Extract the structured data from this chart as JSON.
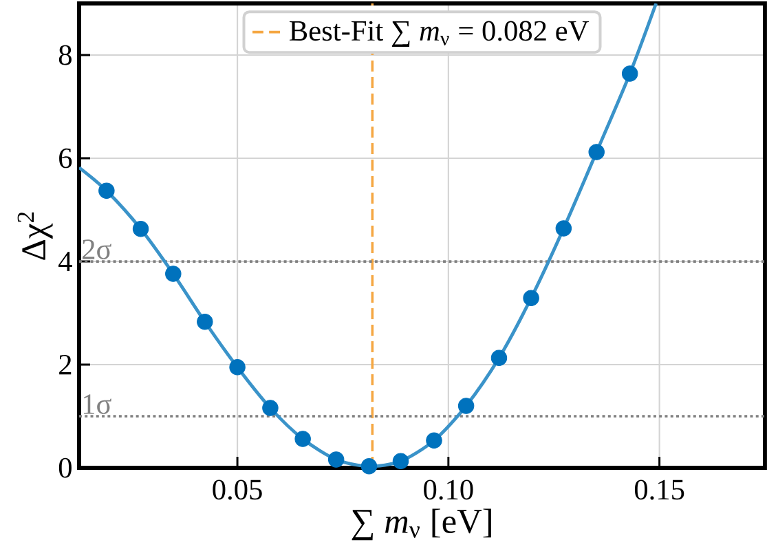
{
  "chart_data": {
    "type": "scatter",
    "xlabel": "∑ *m*$_{ν}$ [eV]",
    "ylabel": "Δχ$^{2}$",
    "xlim": [
      0.0125,
      0.175
    ],
    "ylim": [
      0,
      9
    ],
    "xticks": [
      0.05,
      {
        "value": 0.1,
        "label": "0.10"
      },
      0.15
    ],
    "yticks": [
      0,
      2,
      4,
      6,
      8
    ],
    "grid": true,
    "legend": "top",
    "series": [
      {
        "type": "line",
        "color": "#3a93c9",
        "marker": "none",
        "x": [
          0.0125,
          0.019,
          0.0271,
          0.0348,
          0.0423,
          0.05,
          0.0578,
          0.0655,
          0.0734,
          0.0812,
          0.0887,
          0.0966,
          0.1042,
          0.112,
          0.1196,
          0.1273,
          0.1351,
          0.143,
          0.1492
        ],
        "values": [
          5.82,
          5.37,
          4.63,
          3.76,
          2.83,
          1.95,
          1.16,
          0.56,
          0.16,
          0.03,
          0.13,
          0.53,
          1.2,
          2.13,
          3.29,
          4.64,
          6.12,
          7.64,
          9.0
        ]
      },
      {
        "color": "#0072bd",
        "marker": "circle",
        "x": [
          0.019,
          0.0271,
          0.0348,
          0.0423,
          0.05,
          0.0578,
          0.0655,
          0.0734,
          0.0812,
          0.0887,
          0.0966,
          0.1042,
          0.112,
          0.1196,
          0.1273,
          0.1351,
          0.143
        ],
        "values": [
          5.37,
          4.63,
          3.76,
          2.83,
          1.95,
          1.16,
          0.56,
          0.16,
          0.03,
          0.13,
          0.53,
          1.2,
          2.13,
          3.29,
          4.64,
          6.12,
          7.64
        ]
      }
    ],
    "ref_lines": [
      {
        "axis": "x",
        "value": 0.082,
        "label": "Best-Fit ∑ *m*$_{ν}$ = 0.082 eV",
        "color": "#f5a742",
        "line_style": "dashed"
      },
      {
        "axis": "y",
        "value": 4,
        "label": "2σ",
        "color": "#808080",
        "line_style": "dotted"
      },
      {
        "axis": "y",
        "value": 1,
        "label": "1σ",
        "color": "#808080",
        "line_style": "dotted"
      }
    ]
  }
}
